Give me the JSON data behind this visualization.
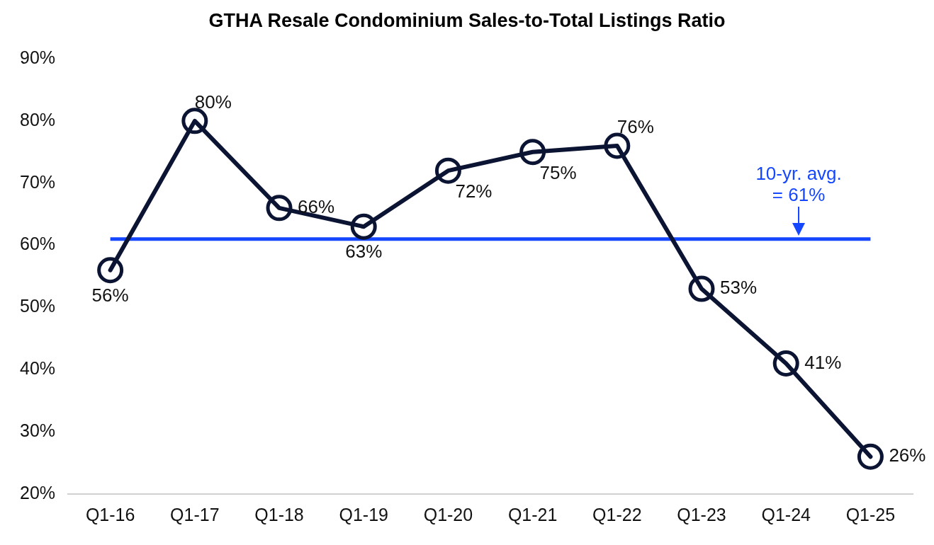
{
  "chart_data": {
    "type": "line",
    "title": "GTHA Resale Condominium Sales-to-Total Listings Ratio",
    "categories": [
      "Q1-16",
      "Q1-17",
      "Q1-18",
      "Q1-19",
      "Q1-20",
      "Q1-21",
      "Q1-22",
      "Q1-23",
      "Q1-24",
      "Q1-25"
    ],
    "series": [
      {
        "color": "#0b1433",
        "values": [
          56,
          80,
          66,
          63,
          72,
          75,
          76,
          53,
          41,
          26
        ]
      }
    ],
    "ylim": [
      20,
      90
    ],
    "yticks": [
      {
        "value": 20,
        "label": "20%"
      },
      {
        "value": 30,
        "label": "30%"
      },
      {
        "value": 40,
        "label": "40%"
      },
      {
        "value": 50,
        "label": "50%"
      },
      {
        "value": 60,
        "label": "60%"
      },
      {
        "value": 70,
        "label": "70%"
      },
      {
        "value": 80,
        "label": "80%"
      },
      {
        "value": 90,
        "label": "90%"
      }
    ],
    "ref_lines": [
      {
        "axis": "y",
        "value": 61,
        "label": "10-yr. avg. = 61%",
        "color": "#1447ff"
      }
    ],
    "value_labels": [
      [
        "56%",
        "80%",
        "66%",
        "63%",
        "72%",
        "75%",
        "76%",
        "53%",
        "41%",
        "26%"
      ]
    ],
    "grid": false,
    "legend": false,
    "marker": "circle",
    "line_style": "solid"
  }
}
